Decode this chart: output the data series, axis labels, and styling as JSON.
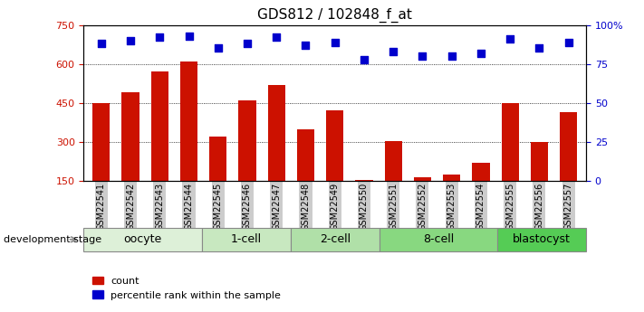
{
  "title": "GDS812 / 102848_f_at",
  "samples": [
    "GSM22541",
    "GSM22542",
    "GSM22543",
    "GSM22544",
    "GSM22545",
    "GSM22546",
    "GSM22547",
    "GSM22548",
    "GSM22549",
    "GSM22550",
    "GSM22551",
    "GSM22552",
    "GSM22553",
    "GSM22554",
    "GSM22555",
    "GSM22556",
    "GSM22557"
  ],
  "counts": [
    450,
    490,
    570,
    610,
    320,
    460,
    520,
    350,
    420,
    155,
    305,
    165,
    175,
    220,
    450,
    300,
    415
  ],
  "percentiles": [
    88,
    90,
    92,
    93,
    85,
    88,
    92,
    87,
    89,
    78,
    83,
    80,
    80,
    82,
    91,
    85,
    89
  ],
  "groups": [
    {
      "label": "oocyte",
      "start": 0,
      "end": 4,
      "color": "#ddf0d8"
    },
    {
      "label": "1-cell",
      "start": 4,
      "end": 7,
      "color": "#c8e8c0"
    },
    {
      "label": "2-cell",
      "start": 7,
      "end": 10,
      "color": "#b0e0a8"
    },
    {
      "label": "8-cell",
      "start": 10,
      "end": 14,
      "color": "#88d880"
    },
    {
      "label": "blastocyst",
      "start": 14,
      "end": 17,
      "color": "#55cc55"
    }
  ],
  "bar_color": "#cc1100",
  "dot_color": "#0000cc",
  "ylim_left": [
    150,
    750
  ],
  "ylim_right": [
    0,
    100
  ],
  "yticks_left": [
    150,
    300,
    450,
    600,
    750
  ],
  "yticks_right": [
    0,
    25,
    50,
    75,
    100
  ],
  "grid_values": [
    300,
    450,
    600
  ],
  "background_color": "#ffffff",
  "tick_label_color_left": "#cc1100",
  "tick_label_color_right": "#0000cc",
  "legend_count_label": "count",
  "legend_pct_label": "percentile rank within the sample"
}
